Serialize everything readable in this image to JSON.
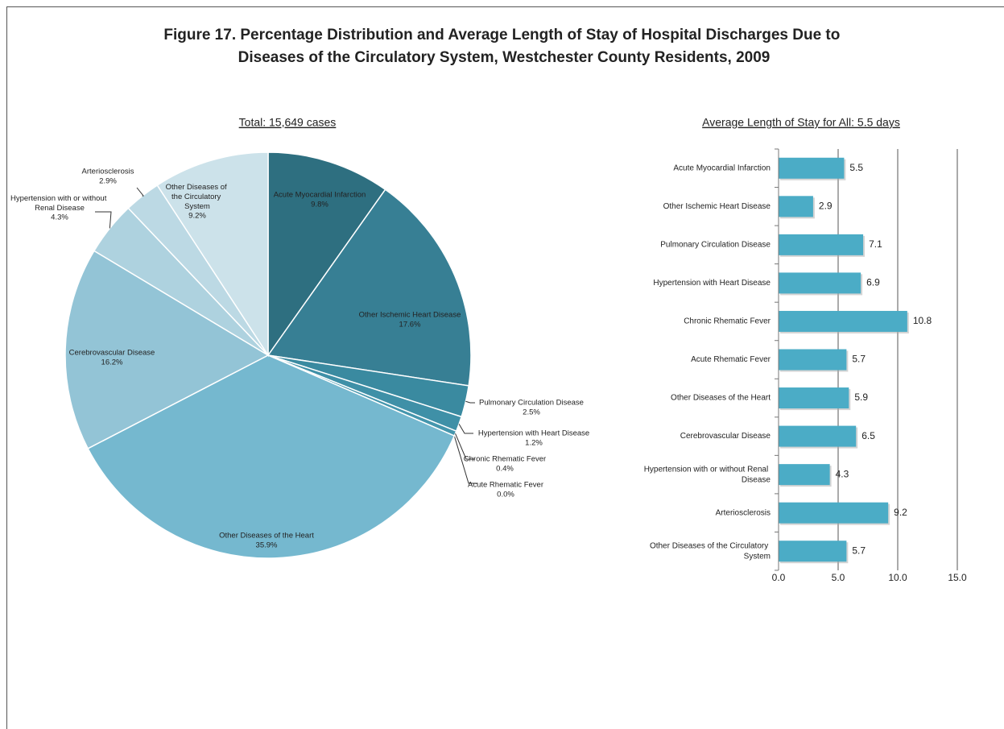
{
  "title": "Figure 17. Percentage Distribution and Average Length of Stay of Hospital Discharges Due to Diseases of the Circulatory System, Westchester County Residents, 2009",
  "chart_data": [
    {
      "type": "pie",
      "subtitle": "Total: 15,649 cases",
      "categories": [
        "Acute Myocardial Infarction",
        "Other Ischemic Heart Disease",
        "Pulmonary Circulation Disease",
        "Hypertension with Heart Disease",
        "Chronic Rhematic Fever",
        "Acute Rhematic Fever",
        "Other Diseases of the Heart",
        "Cerebrovascular Disease",
        "Hypertension with or without Renal Disease",
        "Arteriosclerosis",
        "Other Diseases of the Circulatory System"
      ],
      "values": [
        9.8,
        17.6,
        2.5,
        1.2,
        0.4,
        0.0,
        35.9,
        16.2,
        4.3,
        2.9,
        9.2
      ],
      "value_labels": [
        "9.8%",
        "17.6%",
        "2.5%",
        "1.2%",
        "0.4%",
        "0.0%",
        "35.9%",
        "16.2%",
        "4.3%",
        "2.9%",
        "9.2%"
      ],
      "colors": [
        "#2e6f80",
        "#377f94",
        "#3a8aa0",
        "#3f90a7",
        "#4596ad",
        "#4a9bb2",
        "#75b8cf",
        "#93c4d6",
        "#aed2df",
        "#bcd9e4",
        "#cce2ea"
      ]
    },
    {
      "type": "bar",
      "subtitle": "Average Length of Stay for All: 5.5 days",
      "categories": [
        "Acute Myocardial Infarction",
        "Other Ischemic Heart Disease",
        "Pulmonary Circulation Disease",
        "Hypertension with Heart Disease",
        "Chronic Rhematic Fever",
        "Acute Rhematic Fever",
        "Other Diseases of the Heart",
        "Cerebrovascular Disease",
        "Hypertension with or without Renal Disease",
        "Arteriosclerosis",
        "Other Diseases of the Circulatory System"
      ],
      "values": [
        5.5,
        2.9,
        7.1,
        6.9,
        10.8,
        5.7,
        5.9,
        6.5,
        4.3,
        9.2,
        5.7
      ],
      "color": "#4bacc6",
      "xlim": [
        0,
        15
      ],
      "xticks": [
        {
          "value": 0,
          "label": "0.0"
        },
        {
          "value": 5,
          "label": "5.0"
        },
        {
          "value": 10,
          "label": "10.0"
        },
        {
          "value": 15,
          "label": "15.0"
        }
      ],
      "grid": true
    }
  ]
}
